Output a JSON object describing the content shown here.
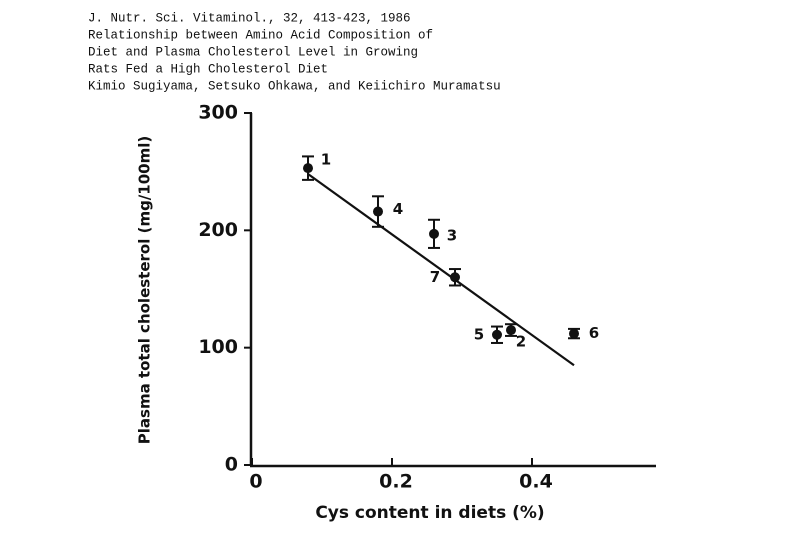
{
  "chart_data": {
    "type": "scatter",
    "citation": [
      "J. Nutr. Sci. Vitaminol., 32, 413-423, 1986",
      "Relationship between Amino Acid Composition of",
      "Diet and Plasma Cholesterol Level in Growing",
      "Rats Fed a High Cholesterol Diet",
      "Kimio Sugiyama, Setsuko Ohkawa, and Keiichiro Muramatsu"
    ],
    "x_label": "Cys content in diets (%)",
    "y_label": "Plasma total cholesterol (mg/100ml)",
    "xlim": [
      0,
      0.58
    ],
    "ylim": [
      0,
      300
    ],
    "xticks": [
      0,
      0.2,
      0.4
    ],
    "yticks": [
      0,
      100,
      200,
      300
    ],
    "color": "#111111",
    "x": [
      0.08,
      0.18,
      0.26,
      0.29,
      0.35,
      0.37,
      0.46
    ],
    "values": [
      253,
      216,
      197,
      160,
      111,
      115,
      112
    ],
    "errors": [
      10,
      13,
      12,
      7,
      7,
      5,
      4
    ],
    "point_labels": [
      "1",
      "4",
      "3",
      "7",
      "5",
      "2",
      "6"
    ],
    "fit_line": {
      "x": [
        0.08,
        0.46
      ],
      "y": [
        248,
        85
      ]
    }
  }
}
